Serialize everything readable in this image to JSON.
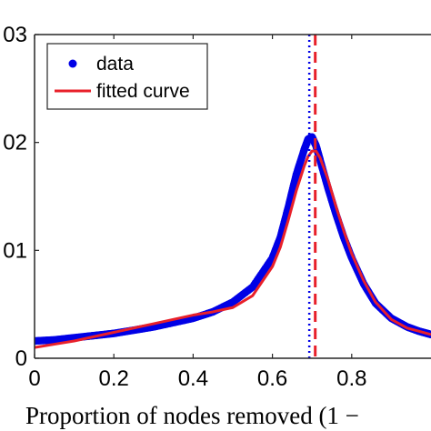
{
  "chart_data": {
    "type": "line",
    "xlabel": "Proportion of nodes removed (1 −",
    "ylabel": "",
    "xlim": [
      0,
      1
    ],
    "ylim": [
      0,
      0.03
    ],
    "x_ticks": [
      0,
      0.2,
      0.4,
      0.6,
      0.8
    ],
    "x_tick_labels": [
      "0",
      "0.2",
      "0.4",
      "0.6",
      "0.8"
    ],
    "y_ticks": [
      0,
      0.01,
      0.02,
      0.03
    ],
    "y_tick_labels": [
      "0",
      "01",
      "02",
      "03"
    ],
    "grid": false,
    "legend_position": "top-left",
    "series": [
      {
        "name": "data",
        "style": "dots",
        "color": "#0000e6",
        "x": [
          0,
          0.05,
          0.1,
          0.15,
          0.2,
          0.25,
          0.3,
          0.35,
          0.4,
          0.45,
          0.5,
          0.55,
          0.6,
          0.62,
          0.64,
          0.66,
          0.68,
          0.69,
          0.7,
          0.71,
          0.72,
          0.74,
          0.76,
          0.78,
          0.8,
          0.83,
          0.86,
          0.9,
          0.94,
          0.97,
          1.0
        ],
        "y": [
          0.0016,
          0.0017,
          0.0019,
          0.0021,
          0.0023,
          0.0026,
          0.0029,
          0.0033,
          0.0037,
          0.0043,
          0.0052,
          0.0066,
          0.0093,
          0.0112,
          0.014,
          0.017,
          0.0193,
          0.0203,
          0.0205,
          0.0197,
          0.0184,
          0.0158,
          0.0134,
          0.0112,
          0.0093,
          0.0069,
          0.0051,
          0.0037,
          0.0029,
          0.0025,
          0.0022
        ]
      },
      {
        "name": "fitted curve",
        "style": "line",
        "color": "#e8202a",
        "x": [
          0,
          0.05,
          0.1,
          0.15,
          0.2,
          0.25,
          0.3,
          0.35,
          0.4,
          0.45,
          0.5,
          0.55,
          0.6,
          0.62,
          0.64,
          0.66,
          0.68,
          0.69,
          0.7,
          0.71,
          0.72,
          0.74,
          0.76,
          0.78,
          0.8,
          0.83,
          0.86,
          0.9,
          0.94,
          0.97,
          1.0
        ],
        "y": [
          0.001,
          0.0013,
          0.0016,
          0.002,
          0.0024,
          0.0028,
          0.0032,
          0.0036,
          0.004,
          0.0043,
          0.0047,
          0.0058,
          0.0085,
          0.0103,
          0.0128,
          0.0155,
          0.0178,
          0.0187,
          0.0192,
          0.0192,
          0.0186,
          0.0166,
          0.0141,
          0.0118,
          0.0097,
          0.0072,
          0.0052,
          0.0036,
          0.0028,
          0.0025,
          0.0022
        ]
      }
    ],
    "vertical_lines": [
      {
        "x": 0.693,
        "color": "#0000e6",
        "style": "dotted"
      },
      {
        "x": 0.708,
        "color": "#e8202a",
        "style": "dashed"
      }
    ]
  }
}
